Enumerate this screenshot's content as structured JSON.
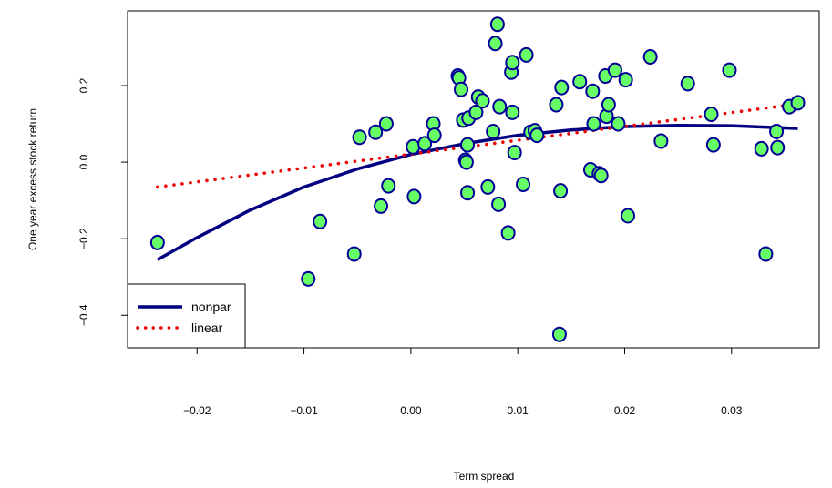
{
  "chart_data": {
    "type": "scatter",
    "title": "",
    "xlabel": "Term spread",
    "ylabel": "One year excess stock return",
    "xlim": [
      -0.0265,
      0.0382
    ],
    "ylim": [
      -0.485,
      0.395
    ],
    "x_ticks": [
      -0.02,
      -0.01,
      0.0,
      0.01,
      0.02,
      0.03
    ],
    "x_tick_labels": [
      "−0.02",
      "−0.01",
      "0.00",
      "0.01",
      "0.02",
      "0.03"
    ],
    "y_ticks": [
      -0.4,
      -0.2,
      0.0,
      0.2
    ],
    "y_tick_labels": [
      "−0.4",
      "−0.2",
      "0.0",
      "0.2"
    ],
    "grid": false,
    "legend_position": "bottom-left",
    "colors": {
      "point_fill": "#66ff66",
      "point_edge": "#000099",
      "nonpar": "#000080",
      "linear": "#ee0000"
    },
    "points": [
      {
        "x": -0.0237,
        "y": -0.21
      },
      {
        "x": -0.0096,
        "y": -0.305
      },
      {
        "x": -0.0085,
        "y": -0.155
      },
      {
        "x": -0.0053,
        "y": -0.24
      },
      {
        "x": -0.0048,
        "y": 0.065
      },
      {
        "x": -0.0033,
        "y": 0.078
      },
      {
        "x": -0.0028,
        "y": -0.115
      },
      {
        "x": -0.0023,
        "y": 0.1
      },
      {
        "x": -0.0021,
        "y": -0.062
      },
      {
        "x": 0.0002,
        "y": 0.04
      },
      {
        "x": 0.0003,
        "y": -0.09
      },
      {
        "x": 0.0013,
        "y": 0.048
      },
      {
        "x": 0.0021,
        "y": 0.1
      },
      {
        "x": 0.0022,
        "y": 0.07
      },
      {
        "x": 0.0044,
        "y": 0.225
      },
      {
        "x": 0.0045,
        "y": 0.22
      },
      {
        "x": 0.0047,
        "y": 0.19
      },
      {
        "x": 0.0049,
        "y": 0.11
      },
      {
        "x": 0.0051,
        "y": 0.005
      },
      {
        "x": 0.0052,
        "y": 0.0
      },
      {
        "x": 0.0053,
        "y": -0.08
      },
      {
        "x": 0.0053,
        "y": 0.045
      },
      {
        "x": 0.0054,
        "y": 0.115
      },
      {
        "x": 0.0061,
        "y": 0.13
      },
      {
        "x": 0.0063,
        "y": 0.17
      },
      {
        "x": 0.0067,
        "y": 0.16
      },
      {
        "x": 0.0072,
        "y": -0.065
      },
      {
        "x": 0.0077,
        "y": 0.08
      },
      {
        "x": 0.0079,
        "y": 0.31
      },
      {
        "x": 0.0081,
        "y": 0.36
      },
      {
        "x": 0.0082,
        "y": -0.11
      },
      {
        "x": 0.0083,
        "y": 0.145
      },
      {
        "x": 0.0091,
        "y": -0.185
      },
      {
        "x": 0.0094,
        "y": 0.235
      },
      {
        "x": 0.0095,
        "y": 0.26
      },
      {
        "x": 0.0095,
        "y": 0.13
      },
      {
        "x": 0.0097,
        "y": 0.025
      },
      {
        "x": 0.0105,
        "y": -0.058
      },
      {
        "x": 0.0108,
        "y": 0.28
      },
      {
        "x": 0.0112,
        "y": 0.078
      },
      {
        "x": 0.0116,
        "y": 0.082
      },
      {
        "x": 0.0118,
        "y": 0.07
      },
      {
        "x": 0.0136,
        "y": 0.15
      },
      {
        "x": 0.0139,
        "y": -0.45
      },
      {
        "x": 0.014,
        "y": -0.075
      },
      {
        "x": 0.0141,
        "y": 0.195
      },
      {
        "x": 0.0158,
        "y": 0.21
      },
      {
        "x": 0.0168,
        "y": -0.02
      },
      {
        "x": 0.017,
        "y": 0.185
      },
      {
        "x": 0.0171,
        "y": 0.1
      },
      {
        "x": 0.0176,
        "y": -0.03
      },
      {
        "x": 0.0178,
        "y": -0.035
      },
      {
        "x": 0.0182,
        "y": 0.225
      },
      {
        "x": 0.0183,
        "y": 0.12
      },
      {
        "x": 0.0185,
        "y": 0.15
      },
      {
        "x": 0.0191,
        "y": 0.24
      },
      {
        "x": 0.0194,
        "y": 0.1
      },
      {
        "x": 0.0201,
        "y": 0.215
      },
      {
        "x": 0.0203,
        "y": -0.14
      },
      {
        "x": 0.0224,
        "y": 0.275
      },
      {
        "x": 0.0234,
        "y": 0.055
      },
      {
        "x": 0.0259,
        "y": 0.205
      },
      {
        "x": 0.0281,
        "y": 0.125
      },
      {
        "x": 0.0283,
        "y": 0.045
      },
      {
        "x": 0.0298,
        "y": 0.24
      },
      {
        "x": 0.0328,
        "y": 0.035
      },
      {
        "x": 0.0332,
        "y": -0.24
      },
      {
        "x": 0.0342,
        "y": 0.08
      },
      {
        "x": 0.0343,
        "y": 0.038
      },
      {
        "x": 0.0354,
        "y": 0.145
      },
      {
        "x": 0.0362,
        "y": 0.155
      }
    ],
    "series": [
      {
        "name": "nonpar",
        "style": "solid",
        "x": [
          -0.0237,
          -0.02,
          -0.015,
          -0.01,
          -0.005,
          0.0,
          0.005,
          0.01,
          0.015,
          0.02,
          0.025,
          0.03,
          0.0362
        ],
        "y": [
          -0.255,
          -0.197,
          -0.125,
          -0.065,
          -0.018,
          0.02,
          0.048,
          0.07,
          0.084,
          0.093,
          0.096,
          0.095,
          0.088
        ]
      },
      {
        "name": "linear",
        "style": "dotted",
        "x": [
          -0.0237,
          0.0362
        ],
        "y": [
          -0.065,
          0.152
        ]
      }
    ]
  }
}
